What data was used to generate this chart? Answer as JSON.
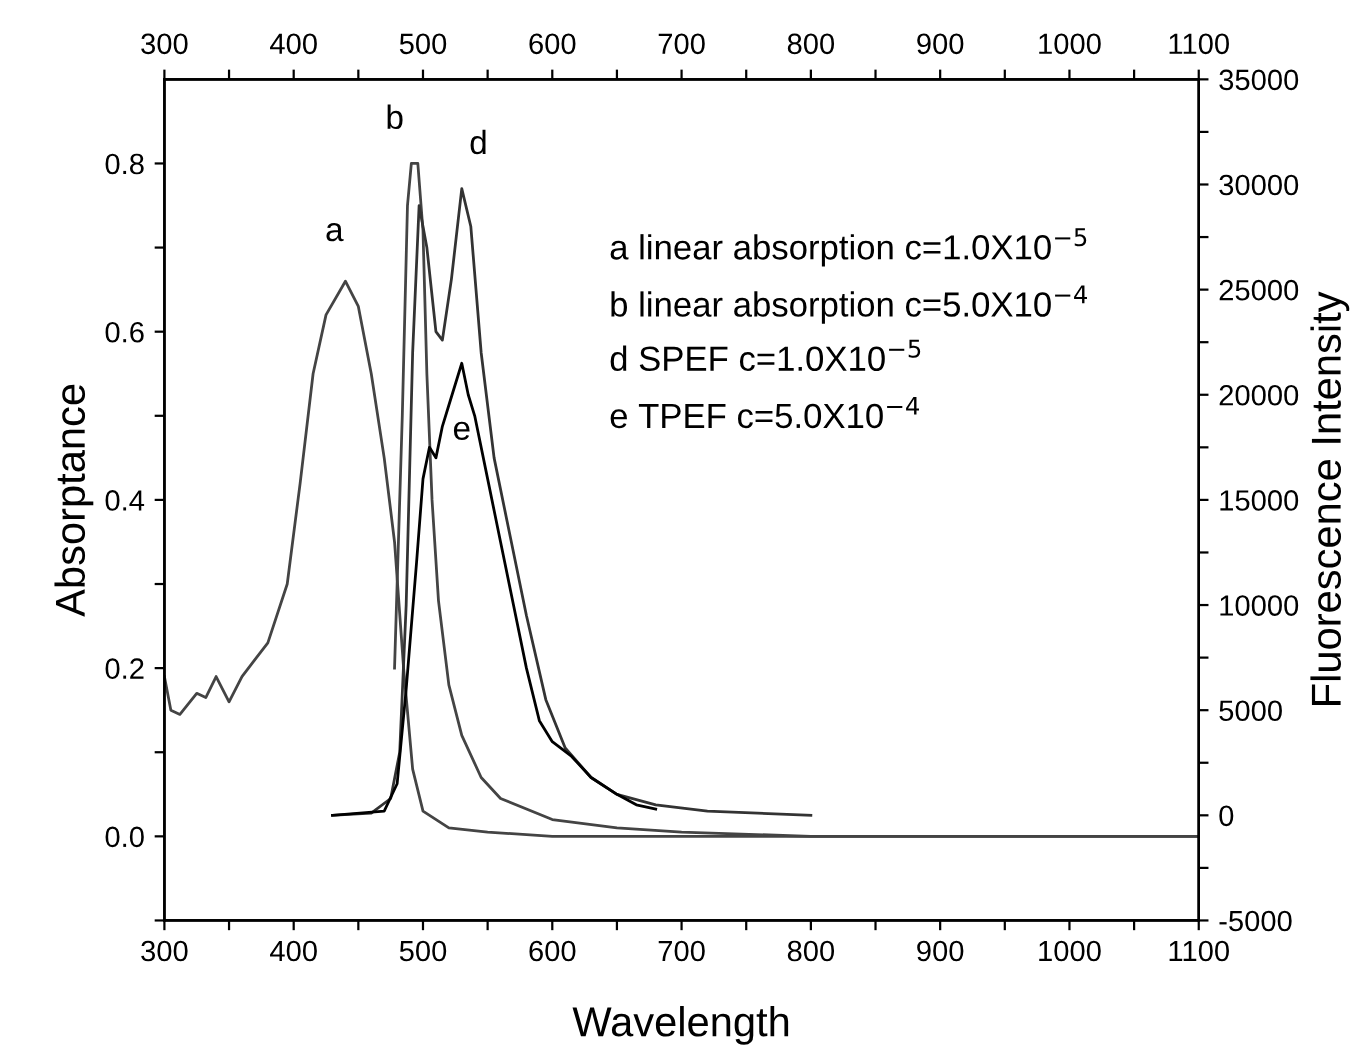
{
  "chart_data": {
    "type": "line",
    "xlabel": "Wavelength",
    "ylabel": "Absorptance",
    "y2label": "Fluorescence Intensity",
    "xlim": [
      300,
      1100
    ],
    "xticks": [
      300,
      {
        "value": 350,
        "label": null
      },
      400,
      {
        "value": 450,
        "label": null
      },
      500,
      {
        "value": 550,
        "label": null
      },
      600,
      {
        "value": 650,
        "label": null
      },
      700,
      {
        "value": 750,
        "label": null
      },
      800,
      {
        "value": 850,
        "label": null
      },
      900,
      {
        "value": 950,
        "label": null
      },
      1000,
      {
        "value": 1050,
        "label": null
      },
      1100
    ],
    "x2lim": [
      300,
      1100
    ],
    "x2ticks": [
      300,
      {
        "value": 350,
        "label": null
      },
      400,
      {
        "value": 450,
        "label": null
      },
      500,
      {
        "value": 550,
        "label": null
      },
      600,
      {
        "value": 650,
        "label": null
      },
      700,
      {
        "value": 750,
        "label": null
      },
      800,
      {
        "value": 850,
        "label": null
      },
      900,
      {
        "value": 950,
        "label": null
      },
      1000,
      {
        "value": 1050,
        "label": null
      },
      1100
    ],
    "ylim": [
      -0.1,
      0.9
    ],
    "yticks": [
      {
        "value": -0.1,
        "label": null
      },
      {
        "value": 0.0,
        "label": "0.0"
      },
      {
        "value": 0.1,
        "label": null
      },
      {
        "value": 0.2,
        "label": "0.2"
      },
      {
        "value": 0.3,
        "label": null
      },
      {
        "value": 0.4,
        "label": "0.4"
      },
      {
        "value": 0.5,
        "label": null
      },
      {
        "value": 0.6,
        "label": "0.6"
      },
      {
        "value": 0.7,
        "label": null
      },
      {
        "value": 0.8,
        "label": "0.8"
      }
    ],
    "y2lim": [
      -5000,
      35000
    ],
    "y2ticks": [
      -5000,
      {
        "value": -2500,
        "label": null
      },
      0,
      {
        "value": 2500,
        "label": null
      },
      5000,
      {
        "value": 7500,
        "label": null
      },
      10000,
      {
        "value": 12500,
        "label": null
      },
      15000,
      {
        "value": 17500,
        "label": null
      },
      20000,
      {
        "value": 22500,
        "label": null
      },
      25000,
      {
        "value": 27500,
        "label": null
      },
      30000,
      {
        "value": 32500,
        "label": null
      },
      35000
    ],
    "grid": false,
    "legend": false,
    "marker": "none",
    "line_style": "solid",
    "series": [
      {
        "name": "a",
        "color": "#444444",
        "x": [
          300,
          305,
          312,
          325,
          332,
          340,
          350,
          360,
          370,
          380,
          395,
          405,
          415,
          425,
          440,
          450,
          460,
          470,
          478,
          485,
          492,
          500,
          520,
          550,
          600,
          700,
          800,
          1100
        ],
        "values": [
          0.19,
          0.15,
          0.145,
          0.17,
          0.165,
          0.19,
          0.16,
          0.19,
          0.21,
          0.23,
          0.3,
          0.42,
          0.55,
          0.62,
          0.66,
          0.63,
          0.55,
          0.45,
          0.35,
          0.2,
          0.08,
          0.03,
          0.01,
          0.005,
          0.0,
          0.0,
          0.0,
          0.0
        ]
      },
      {
        "name": "b",
        "color": "#444444",
        "x": [
          478,
          484,
          488,
          491,
          496,
          500,
          503,
          507,
          512,
          520,
          530,
          545,
          560,
          600,
          650,
          700,
          800,
          1100
        ],
        "values": [
          0.2,
          0.5,
          0.75,
          0.8,
          0.8,
          0.72,
          0.55,
          0.4,
          0.28,
          0.18,
          0.12,
          0.07,
          0.045,
          0.02,
          0.01,
          0.005,
          0.0,
          0.0
        ]
      },
      {
        "name": "d",
        "color": "#333333",
        "axis": "y2",
        "x": [
          430,
          460,
          475,
          482,
          487,
          492,
          497,
          503,
          510,
          515,
          522,
          530,
          537,
          545,
          555,
          565,
          580,
          595,
          610,
          630,
          650,
          680,
          720,
          800
        ],
        "values": [
          0,
          100,
          800,
          3000,
          10000,
          22000,
          29000,
          27000,
          23000,
          22600,
          25500,
          29800,
          28000,
          22000,
          17000,
          14000,
          9500,
          5500,
          3200,
          1800,
          1000,
          500,
          200,
          0
        ]
      },
      {
        "name": "e",
        "color": "#000000",
        "axis": "y2",
        "x": [
          430,
          470,
          480,
          487,
          495,
          500,
          505,
          510,
          515,
          520,
          525,
          530,
          535,
          540,
          550,
          560,
          570,
          580,
          590,
          600,
          615,
          630,
          650,
          665,
          680
        ],
        "values": [
          0,
          200,
          1500,
          6000,
          12000,
          16000,
          17500,
          17000,
          18500,
          19500,
          20500,
          21500,
          20000,
          19000,
          16000,
          13000,
          10000,
          7000,
          4500,
          3500,
          2800,
          1800,
          1000,
          500,
          300
        ]
      }
    ],
    "annotations": [
      "a linear absorption c=1.0X10$^{−5}$",
      "b linear absorption c=5.0X10$^{−4}$",
      "d SPEF c=1.0X10$^{−5}$",
      "e TPEF c=5.0X10$^{−4}$"
    ]
  }
}
